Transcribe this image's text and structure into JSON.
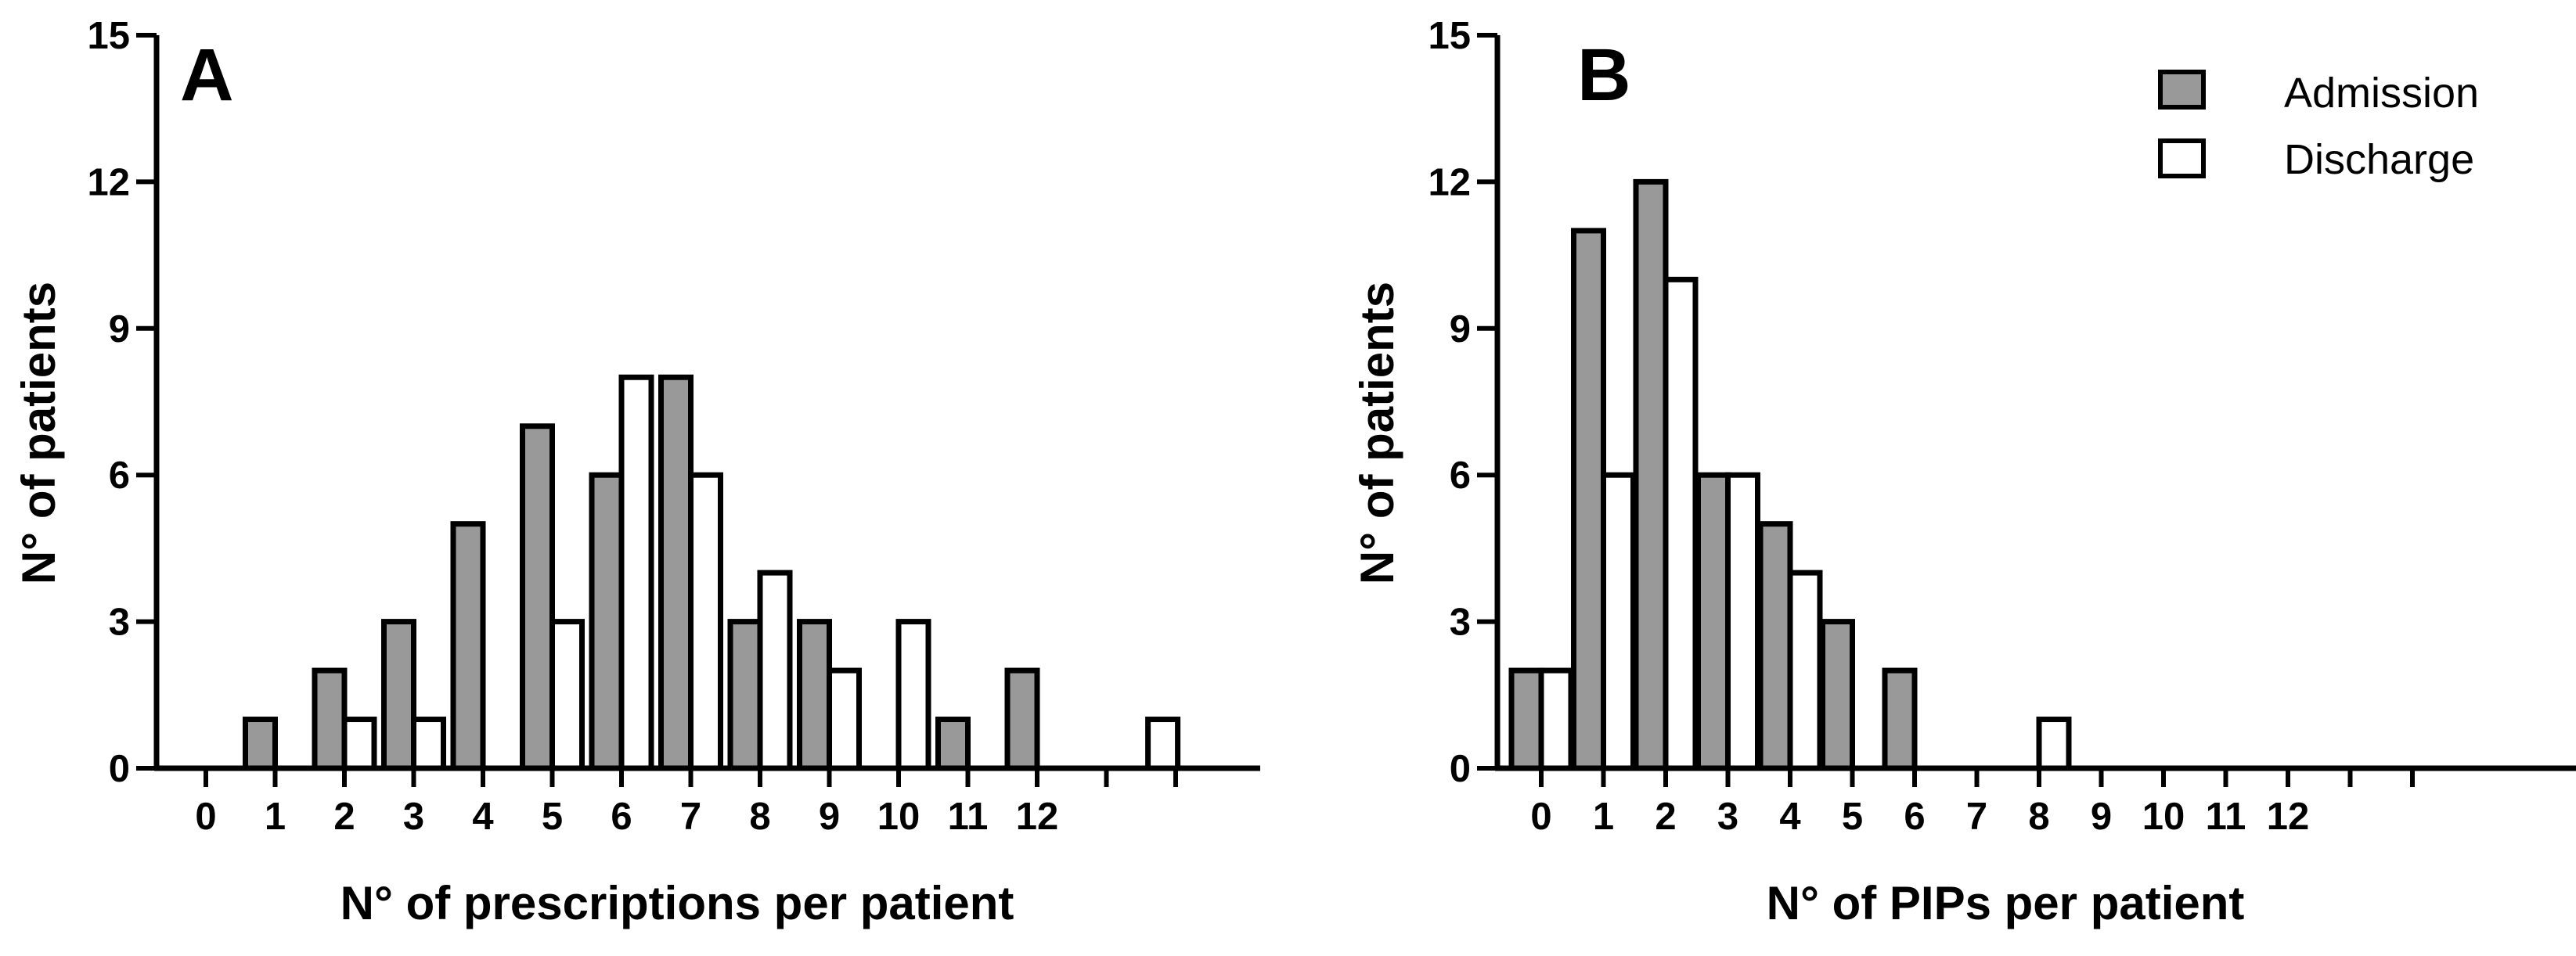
{
  "colors": {
    "admission": "#999999",
    "discharge": "#ffffff",
    "stroke": "#000000"
  },
  "legend": {
    "admission_label": "Admission",
    "discharge_label": "Discharge"
  },
  "chart_data": [
    {
      "type": "bar",
      "panel_label": "A",
      "title": "",
      "xlabel": "N° of prescriptions per patient",
      "ylabel": "N° of patients",
      "ylim": [
        0,
        15
      ],
      "yticks": [
        0,
        3,
        6,
        9,
        12,
        15
      ],
      "categories": [
        "0",
        "1",
        "2",
        "3",
        "4",
        "5",
        "6",
        "7",
        "8",
        "9",
        "10",
        "11",
        "12"
      ],
      "series": [
        {
          "name": "Admission",
          "values": [
            0,
            1,
            2,
            3,
            5,
            7,
            6,
            8,
            3,
            3,
            0,
            1,
            2
          ]
        },
        {
          "name": "Discharge",
          "values": [
            0,
            0,
            1,
            1,
            0,
            3,
            8,
            6,
            4,
            2,
            3,
            0,
            0
          ]
        }
      ],
      "extra_bars": [
        {
          "series": "Discharge",
          "value": 1,
          "position": "beyond 12 (unlabeled)"
        }
      ],
      "grid": false
    },
    {
      "type": "bar",
      "panel_label": "B",
      "title": "",
      "xlabel": "N° of PIPs per patient",
      "ylabel": "N° of patients",
      "ylim": [
        0,
        15
      ],
      "yticks": [
        0,
        3,
        6,
        9,
        12,
        15
      ],
      "categories": [
        "0",
        "1",
        "2",
        "3",
        "4",
        "5",
        "6",
        "7",
        "8",
        "9",
        "10",
        "11",
        "12"
      ],
      "series": [
        {
          "name": "Admission",
          "values": [
            2,
            11,
            12,
            6,
            5,
            3,
            2,
            0,
            0,
            0,
            0,
            0,
            0
          ]
        },
        {
          "name": "Discharge",
          "values": [
            2,
            6,
            10,
            6,
            4,
            0,
            0,
            0,
            1,
            0,
            0,
            0,
            0
          ]
        }
      ],
      "legend_position": "top-right",
      "grid": false
    }
  ]
}
